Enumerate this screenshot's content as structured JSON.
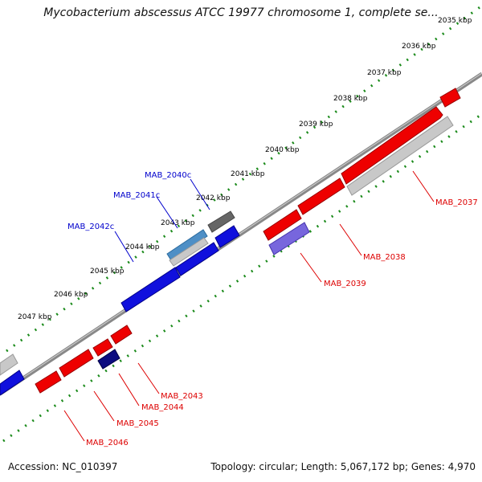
{
  "title": "Mycobacterium abscessus ATCC 19977 chromosome 1, complete se...",
  "footer": {
    "accession": "Accession: NC_010397",
    "info": "Topology: circular; Length: 5,067,172 bp; Genes: 4,970"
  },
  "colors": {
    "forward": "#ee0000",
    "reverse": "#1010dd",
    "grey": "#b8b8b8",
    "dark_grey": "#666666",
    "purple": "#7766dd",
    "navy": "#0c0c80",
    "steel_blue": "#4e8fc6",
    "tick": "#1a8a1a",
    "backbone": "#777777"
  },
  "kbp_labels": [
    "2035 kbp",
    "2036 kbp",
    "2037 kbp",
    "2038 kbp",
    "2039 kbp",
    "2040 kbp",
    "2041 kbp",
    "2042 kbp",
    "2043 kbp",
    "2044 kbp",
    "2045 kbp",
    "2046 kbp",
    "2047 kbp"
  ],
  "genes_forward": [
    "MAB_2037",
    "MAB_2038",
    "MAB_2039",
    "MAB_2043",
    "MAB_2044",
    "MAB_2045",
    "MAB_2046"
  ],
  "genes_reverse": [
    "MAB_2040c",
    "MAB_2041c",
    "MAB_2042c"
  ]
}
